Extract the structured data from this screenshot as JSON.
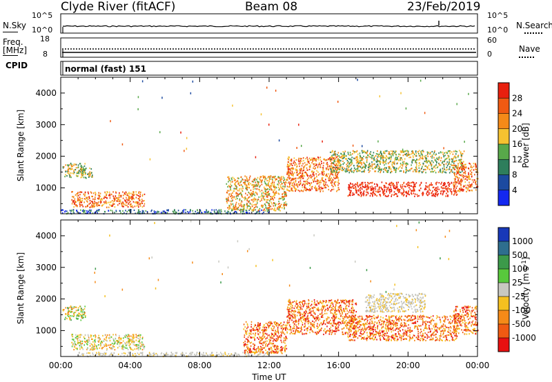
{
  "header": {
    "station": "Clyde River (fitACF)",
    "beam": "Beam 08",
    "date": "23/Feb/2019"
  },
  "top_panels": {
    "nsky": {
      "label": "N.Sky",
      "tick_top": "10^5",
      "tick_bottom": "10^0",
      "right_tick_top": "10^5",
      "right_tick_bottom": "10^0",
      "right_label": "N.Search"
    },
    "freq": {
      "label_line1": "Freq.",
      "label_line2": "[MHz]",
      "tick_top": "18",
      "tick_bottom": "8",
      "right_tick_top": "60",
      "right_tick_bottom": "0",
      "right_label": "Nave"
    },
    "cpid": {
      "label": "CPID",
      "text": "normal (fast) 151"
    }
  },
  "chart_data": [
    {
      "type": "heatmap",
      "ylabel": "Slant Range [km]",
      "yticks": [
        1000,
        2000,
        3000,
        4000
      ],
      "ylim": [
        180,
        4500
      ],
      "xlim": [
        0,
        24
      ],
      "colorbar": {
        "label": "Power [dB]",
        "ticks": [
          "28",
          "24",
          "20",
          "16",
          "12",
          "8",
          "4"
        ],
        "colors": [
          "#e8200e",
          "#f05a12",
          "#f58a18",
          "#f5c230",
          "#58a84a",
          "#2e7e5c",
          "#1c4aa0",
          "#1428f0"
        ]
      },
      "regions": [
        {
          "t0": 0.1,
          "t1": 1.4,
          "r0": 1350,
          "r1": 1800,
          "level": "green"
        },
        {
          "t0": 1.1,
          "t1": 1.8,
          "r0": 1300,
          "r1": 1650,
          "level": "green"
        },
        {
          "t0": 0.6,
          "t1": 4.8,
          "r0": 400,
          "r1": 900,
          "level": "orange"
        },
        {
          "t0": 0.0,
          "t1": 12.0,
          "r0": 200,
          "r1": 330,
          "level": "blue"
        },
        {
          "t0": 9.5,
          "t1": 13.0,
          "r0": 300,
          "r1": 1400,
          "level": "yellow"
        },
        {
          "t0": 13.0,
          "t1": 16.0,
          "r0": 900,
          "r1": 2000,
          "level": "orange"
        },
        {
          "t0": 15.5,
          "t1": 23.2,
          "r0": 1500,
          "r1": 2200,
          "level": "green"
        },
        {
          "t0": 16.5,
          "t1": 22.8,
          "r0": 750,
          "r1": 1200,
          "level": "red"
        },
        {
          "t0": 22.6,
          "t1": 24.0,
          "r0": 900,
          "r1": 1800,
          "level": "orange"
        }
      ]
    },
    {
      "type": "heatmap",
      "ylabel": "Slant Range [km]",
      "xlabel": "Time UT",
      "xticks": [
        "00:00",
        "04:00",
        "08:00",
        "12:00",
        "16:00",
        "20:00",
        "00:00"
      ],
      "yticks": [
        1000,
        2000,
        3000,
        4000
      ],
      "ylim": [
        180,
        4500
      ],
      "xlim": [
        0,
        24
      ],
      "colorbar": {
        "label": "Velocity [m s^-1]",
        "ticks": [
          "1000",
          "500",
          "100",
          "25",
          "-25",
          "-100",
          "-500",
          "-1000"
        ],
        "colors": [
          "#1838b8",
          "#2e6e8e",
          "#3c9a4a",
          "#58c83c",
          "#c8c8c0",
          "#f5c020",
          "#f58a18",
          "#f05a12",
          "#e81010"
        ]
      },
      "regions": [
        {
          "t0": 0.1,
          "t1": 1.4,
          "r0": 1350,
          "r1": 1800,
          "level": "green"
        },
        {
          "t0": 0.6,
          "t1": 4.8,
          "r0": 400,
          "r1": 900,
          "level": "mix"
        },
        {
          "t0": 1.0,
          "t1": 12.0,
          "r0": 200,
          "r1": 330,
          "level": "grey"
        },
        {
          "t0": 10.5,
          "t1": 13.0,
          "r0": 300,
          "r1": 1300,
          "level": "orange"
        },
        {
          "t0": 13.0,
          "t1": 17.0,
          "r0": 900,
          "r1": 2000,
          "level": "orange"
        },
        {
          "t0": 17.5,
          "t1": 21.0,
          "r0": 1600,
          "r1": 2200,
          "level": "grey"
        },
        {
          "t0": 16.5,
          "t1": 22.8,
          "r0": 700,
          "r1": 1500,
          "level": "orange"
        },
        {
          "t0": 22.6,
          "t1": 24.0,
          "r0": 900,
          "r1": 1800,
          "level": "orange"
        }
      ]
    }
  ]
}
